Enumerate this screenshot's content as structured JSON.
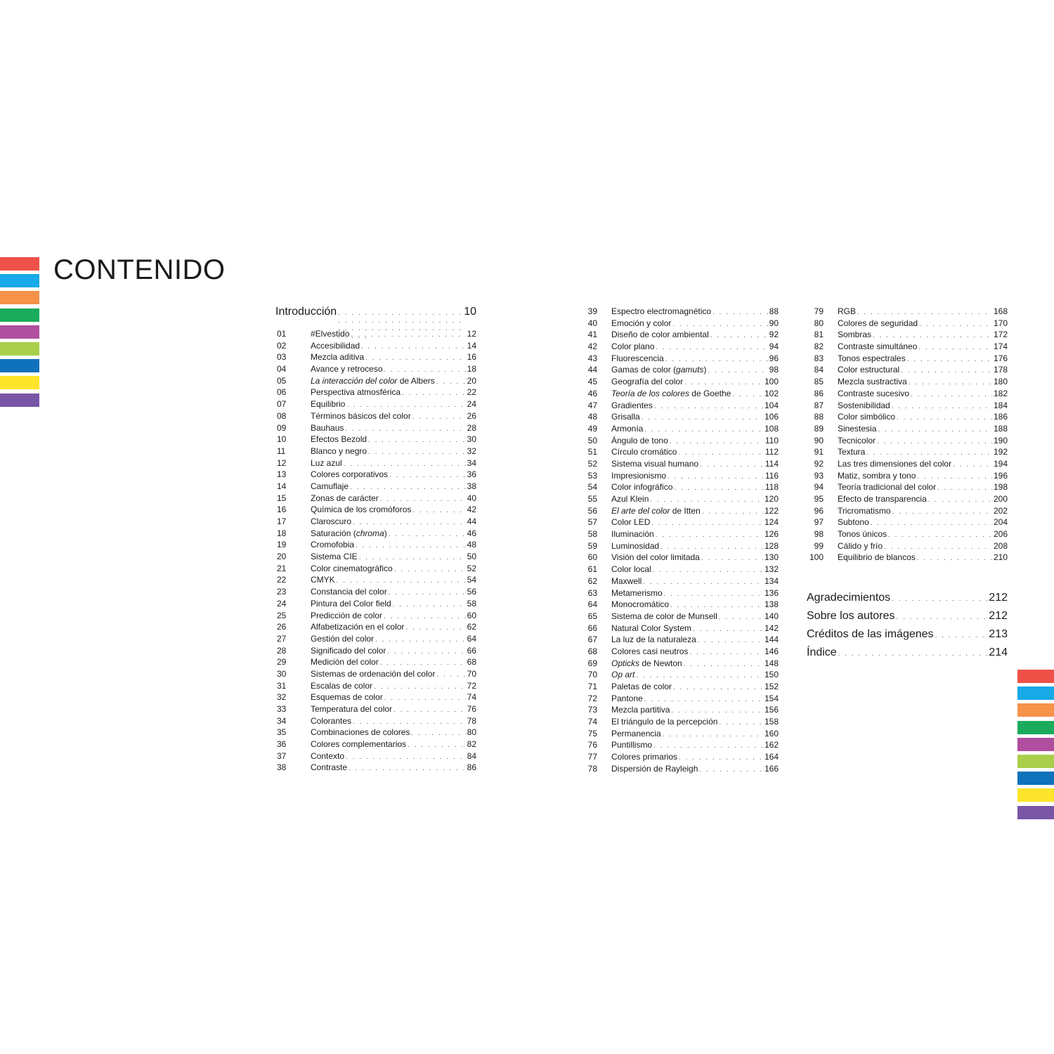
{
  "title": "CONTENIDO",
  "stripe_colors": [
    "#ef5148",
    "#17a9e8",
    "#f7924a",
    "#1aab5c",
    "#b04e9f",
    "#a9cf4a",
    "#0f72bb",
    "#fde42a",
    "#7955a6"
  ],
  "intro": {
    "label": "Introducción",
    "page": "10"
  },
  "col1": [
    {
      "n": "01",
      "t": "#Elvestido",
      "p": "12"
    },
    {
      "n": "02",
      "t": "Accesibilidad",
      "p": "14"
    },
    {
      "n": "03",
      "t": "Mezcla aditiva",
      "p": "16"
    },
    {
      "n": "04",
      "t": "Avance y retroceso",
      "p": "18"
    },
    {
      "n": "05",
      "ti": "La interacción del color",
      "t": " de Albers",
      "p": "20"
    },
    {
      "n": "06",
      "t": "Perspectiva atmosférica",
      "p": "22"
    },
    {
      "n": "07",
      "t": "Equilibrio",
      "p": "24"
    },
    {
      "n": "08",
      "t": "Términos básicos del color",
      "p": "26"
    },
    {
      "n": "09",
      "t": "Bauhaus",
      "p": "28"
    },
    {
      "n": "10",
      "t": "Efectos Bezold",
      "p": "30"
    },
    {
      "n": "11",
      "t": "Blanco y negro",
      "p": "32"
    },
    {
      "n": "12",
      "t": "Luz azul",
      "p": "34"
    },
    {
      "n": "13",
      "t": "Colores corporativos",
      "p": "36"
    },
    {
      "n": "14",
      "t": "Camuflaje",
      "p": "38"
    },
    {
      "n": "15",
      "t": "Zonas de carácter",
      "p": "40"
    },
    {
      "n": "16",
      "t": "Química de los cromóforos",
      "p": "42"
    },
    {
      "n": "17",
      "t": "Claroscuro",
      "p": "44"
    },
    {
      "n": "18",
      "t": "Saturación (",
      "ti": "chroma",
      "t2": ")",
      "p": "46"
    },
    {
      "n": "19",
      "t": "Cromofobia",
      "p": "48"
    },
    {
      "n": "20",
      "t": "Sistema CIE",
      "p": "50"
    },
    {
      "n": "21",
      "t": "Color cinematográfico",
      "p": "52"
    },
    {
      "n": "22",
      "t": "CMYK",
      "p": "54"
    },
    {
      "n": "23",
      "t": "Constancia del color",
      "p": "56"
    },
    {
      "n": "24",
      "t": "Pintura del Color field",
      "p": "58"
    },
    {
      "n": "25",
      "t": "Predicción de color",
      "p": "60"
    },
    {
      "n": "26",
      "t": "Alfabetización en el color",
      "p": "62"
    },
    {
      "n": "27",
      "t": "Gestión del color",
      "p": "64"
    },
    {
      "n": "28",
      "t": "Significado del color",
      "p": "66"
    },
    {
      "n": "29",
      "t": "Medición del color",
      "p": "68"
    },
    {
      "n": "30",
      "t": "Sistemas de ordenación del color",
      "p": "70"
    },
    {
      "n": "31",
      "t": "Escalas de color",
      "p": "72"
    },
    {
      "n": "32",
      "t": "Esquemas de color",
      "p": "74"
    },
    {
      "n": "33",
      "t": "Temperatura del color",
      "p": "76"
    },
    {
      "n": "34",
      "t": "Colorantes",
      "p": "78"
    },
    {
      "n": "35",
      "t": "Combinaciones de colores",
      "p": "80"
    },
    {
      "n": "36",
      "t": "Colores complementarios",
      "p": "82"
    },
    {
      "n": "37",
      "t": "Contexto",
      "p": "84"
    },
    {
      "n": "38",
      "t": "Contraste",
      "p": "86"
    }
  ],
  "col2": [
    {
      "n": "39",
      "t": "Espectro electromagnético",
      "p": "88"
    },
    {
      "n": "40",
      "t": "Emoción y color",
      "p": "90"
    },
    {
      "n": "41",
      "t": "Diseño de color ambiental",
      "p": "92"
    },
    {
      "n": "42",
      "t": "Color plano",
      "p": "94"
    },
    {
      "n": "43",
      "t": "Fluorescencia",
      "p": "96"
    },
    {
      "n": "44",
      "t": "Gamas de color (",
      "ti": "gamuts",
      "t2": ")",
      "p": "98"
    },
    {
      "n": "45",
      "t": "Geografía del color",
      "p": "100"
    },
    {
      "n": "46",
      "ti": "Teoría de los colores",
      "t": " de Goethe",
      "p": "102"
    },
    {
      "n": "47",
      "t": "Gradientes",
      "p": "104"
    },
    {
      "n": "48",
      "t": "Grisalla",
      "p": "106"
    },
    {
      "n": "49",
      "t": "Armonía",
      "p": "108"
    },
    {
      "n": "50",
      "t": "Ángulo de tono",
      "p": "110"
    },
    {
      "n": "51",
      "t": "Círculo cromático",
      "p": "112"
    },
    {
      "n": "52",
      "t": "Sistema visual humano",
      "p": "114"
    },
    {
      "n": "53",
      "t": "Impresionismo",
      "p": "116"
    },
    {
      "n": "54",
      "t": "Color infográfico",
      "p": "118"
    },
    {
      "n": "55",
      "t": "Azul Klein",
      "p": "120"
    },
    {
      "n": "56",
      "ti": "El arte del color",
      "t": " de Itten",
      "p": "122"
    },
    {
      "n": "57",
      "t": "Color LED",
      "p": "124"
    },
    {
      "n": "58",
      "t": "Iluminación",
      "p": "126"
    },
    {
      "n": "59",
      "t": "Luminosidad",
      "p": "128"
    },
    {
      "n": "60",
      "t": "Visión del color limitada",
      "p": "130"
    },
    {
      "n": "61",
      "t": "Color local",
      "p": "132"
    },
    {
      "n": "62",
      "t": "Maxwell",
      "p": "134"
    },
    {
      "n": "63",
      "t": "Metamerismo",
      "p": "136"
    },
    {
      "n": "64",
      "t": "Monocromático",
      "p": "138"
    },
    {
      "n": "65",
      "t": "Sistema de color de Munsell",
      "p": "140"
    },
    {
      "n": "66",
      "t": "Natural Color System",
      "p": "142"
    },
    {
      "n": "67",
      "t": "La luz de la naturaleza",
      "p": "144"
    },
    {
      "n": "68",
      "t": "Colores casi neutros",
      "p": "146"
    },
    {
      "n": "69",
      "ti": "Opticks",
      "t": " de Newton",
      "p": "148"
    },
    {
      "n": "70",
      "ti": "Op art",
      "p": "150"
    },
    {
      "n": "71",
      "t": "Paletas de color",
      "p": "152"
    },
    {
      "n": "72",
      "t": "Pantone",
      "p": "154"
    },
    {
      "n": "73",
      "t": "Mezcla partitiva",
      "p": "156"
    },
    {
      "n": "74",
      "t": "El triángulo de la percepción",
      "p": "158"
    },
    {
      "n": "75",
      "t": "Permanencia",
      "p": "160"
    },
    {
      "n": "76",
      "t": "Puntillismo",
      "p": "162"
    },
    {
      "n": "77",
      "t": "Colores primarios",
      "p": "164"
    },
    {
      "n": "78",
      "t": "Dispersión de Rayleigh",
      "p": "166"
    }
  ],
  "col3": [
    {
      "n": "79",
      "t": "RGB",
      "p": "168"
    },
    {
      "n": "80",
      "t": "Colores de seguridad",
      "p": "170"
    },
    {
      "n": "81",
      "t": "Sombras",
      "p": "172"
    },
    {
      "n": "82",
      "t": "Contraste simultáneo",
      "p": "174"
    },
    {
      "n": "83",
      "t": "Tonos espectrales",
      "p": "176"
    },
    {
      "n": "84",
      "t": "Color estructural",
      "p": "178"
    },
    {
      "n": "85",
      "t": "Mezcla sustractiva",
      "p": "180"
    },
    {
      "n": "86",
      "t": "Contraste sucesivo",
      "p": "182"
    },
    {
      "n": "87",
      "t": "Sostenibilidad",
      "p": "184"
    },
    {
      "n": "88",
      "t": "Color simbólico",
      "p": "186"
    },
    {
      "n": "89",
      "t": "Sinestesia",
      "p": "188"
    },
    {
      "n": "90",
      "t": "Tecnicolor",
      "p": "190"
    },
    {
      "n": "91",
      "t": "Textura",
      "p": "192"
    },
    {
      "n": "92",
      "t": "Las tres dimensiones del color",
      "p": "194"
    },
    {
      "n": "93",
      "t": "Matiz, sombra y tono",
      "p": "196"
    },
    {
      "n": "94",
      "t": "Teoría tradicional del color",
      "p": "198"
    },
    {
      "n": "95",
      "t": "Efecto de transparencia",
      "p": "200"
    },
    {
      "n": "96",
      "t": "Tricromatismo",
      "p": "202"
    },
    {
      "n": "97",
      "t": "Subtono",
      "p": "204"
    },
    {
      "n": "98",
      "t": "Tonos únicos",
      "p": "206"
    },
    {
      "n": "99",
      "t": "Cálido y frío",
      "p": "208"
    },
    {
      "n": "100",
      "t": "Equilibrio de blancos",
      "p": "210"
    }
  ],
  "back_matter": [
    {
      "t": "Agradecimientos",
      "p": "212"
    },
    {
      "t": "Sobre los autores",
      "p": "212"
    },
    {
      "t": "Créditos de las imágenes",
      "p": "213"
    },
    {
      "t": "Índice",
      "p": "214"
    }
  ]
}
